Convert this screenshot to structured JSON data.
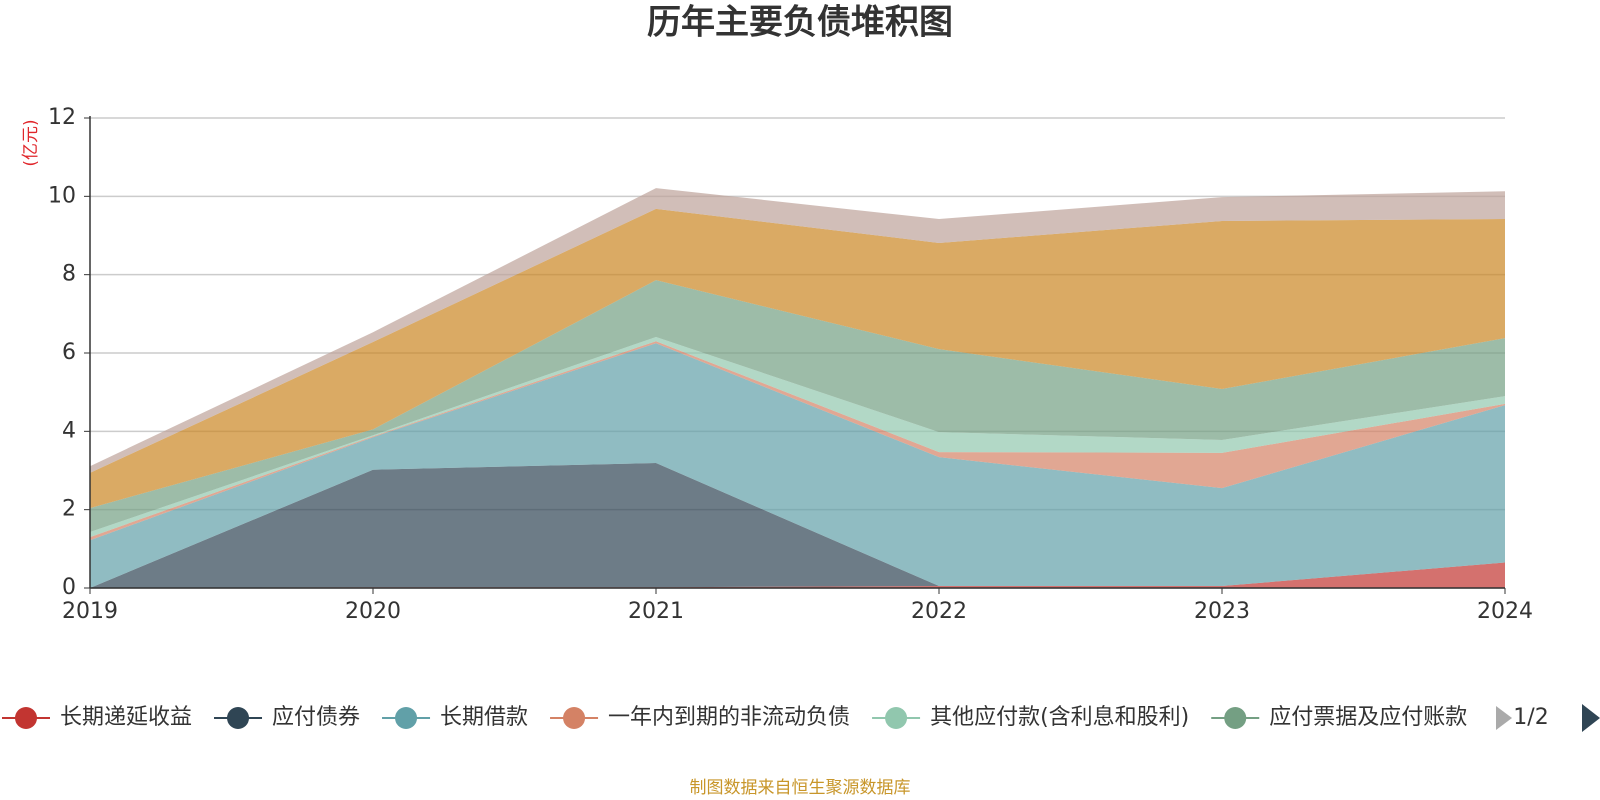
{
  "chart_data": {
    "type": "stacked-area",
    "title": "历年主要负债堆积图",
    "y_label": "(亿元)",
    "source": "制图数据来自恒生聚源数据库",
    "legend_page": "1/2",
    "categories": [
      "2019",
      "2020",
      "2021",
      "2022",
      "2023",
      "2024"
    ],
    "ylim": [
      0,
      12
    ],
    "yticks": [
      0,
      2,
      4,
      6,
      8,
      10,
      12
    ],
    "grid": true,
    "series": [
      {
        "name": "长期递延收益",
        "color": "#c23531",
        "values": [
          0,
          0.02,
          0.02,
          0.05,
          0.05,
          0.65
        ]
      },
      {
        "name": "应付债券",
        "color": "#2f4554",
        "values": [
          0,
          3.0,
          3.17,
          0,
          0,
          0
        ]
      },
      {
        "name": "长期借款",
        "color": "#61a0a8",
        "values": [
          1.22,
          0.83,
          3.06,
          3.29,
          2.5,
          4.02
        ]
      },
      {
        "name": "一年内到期的非流动负债",
        "color": "#d48265",
        "values": [
          0.08,
          0.02,
          0.05,
          0.13,
          0.9,
          0.03
        ]
      },
      {
        "name": "其他应付款(含利息和股利)",
        "color": "#91c7ae",
        "values": [
          0.13,
          0.03,
          0.11,
          0.51,
          0.33,
          0.2
        ]
      },
      {
        "name": "应付票据及应付账款",
        "color": "#749f83",
        "values": [
          0.61,
          0.15,
          1.45,
          2.12,
          1.3,
          1.48
        ]
      },
      {
        "name": null,
        "color": "#ca8622",
        "values": [
          0.9,
          2.23,
          1.82,
          2.71,
          4.29,
          3.04
        ]
      },
      {
        "name": null,
        "color": "#bda29a",
        "values": [
          0.17,
          0.25,
          0.53,
          0.61,
          0.61,
          0.71
        ]
      }
    ]
  }
}
